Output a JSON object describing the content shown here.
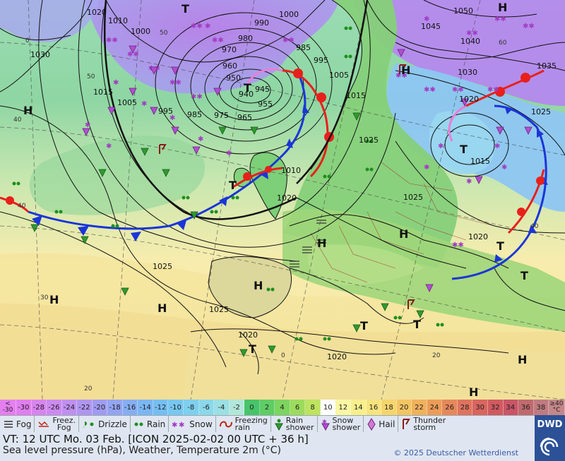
{
  "map": {
    "pressure_labels": [
      "1020",
      "1010",
      "1000",
      "990",
      "1000",
      "980",
      "970",
      "960",
      "950",
      "940",
      "945",
      "955",
      "965",
      "975",
      "985",
      "995",
      "1005",
      "1015",
      "1025",
      "1030",
      "1050",
      "1045",
      "1040",
      "1030",
      "1035",
      "1025",
      "1015",
      "1020",
      "1025",
      "1015",
      "1010",
      "1020",
      "1025",
      "1025",
      "1020",
      "1020",
      "1005",
      "995",
      "985",
      "1020"
    ],
    "highs_lows": [
      "H",
      "T",
      "H",
      "H",
      "T",
      "H",
      "T",
      "H",
      "H",
      "H",
      "T",
      "T",
      "H",
      "T",
      "T",
      "H",
      "T",
      "H",
      "T"
    ],
    "temp_isolines": [
      "40",
      "50",
      "40",
      "30",
      "20",
      "50",
      "60",
      "40",
      "20",
      "0",
      "0"
    ]
  },
  "scale": {
    "end_low_top": "<",
    "end_low_bottom": "-30",
    "values": [
      "-30",
      "-28",
      "-26",
      "-24",
      "-22",
      "-20",
      "-18",
      "-16",
      "-14",
      "-12",
      "-10",
      "-8",
      "-6",
      "-4",
      "-2",
      "0",
      "2",
      "4",
      "6",
      "8",
      "10",
      "12",
      "14",
      "16",
      "18",
      "20",
      "22",
      "24",
      "26",
      "28",
      "30",
      "32",
      "34",
      "36",
      "38"
    ],
    "colors": [
      "#e17ef0",
      "#d884ef",
      "#cc8af0",
      "#bf8ff0",
      "#b095f0",
      "#a09bf1",
      "#93a4f2",
      "#85adf2",
      "#7ab6f3",
      "#74bef3",
      "#77c7f1",
      "#7ed0ee",
      "#8bd8ea",
      "#9be0e4",
      "#b3e6da",
      "#47c469",
      "#5fcc64",
      "#7dd45f",
      "#9cdb5e",
      "#bde35f",
      "#ffffff",
      "#fbf7a3",
      "#f8ef8e",
      "#f8e37e",
      "#f6d56e",
      "#f3c462",
      "#f0b15c",
      "#ec9c57",
      "#e6875a",
      "#df735f",
      "#d9655f",
      "#d05a60",
      "#c95567",
      "#bf6a6e",
      "#c07b80"
    ],
    "end_high_top": "≥40",
    "end_high_bottom": "°C"
  },
  "legend": {
    "fog": "Fog",
    "freez_fog": "Freez.\nFog",
    "drizzle": "Drizzle",
    "rain": "Rain",
    "snow": "Snow",
    "freezing_rain": "Freezing\nrain",
    "rain_shower": "Rain\nshower",
    "snow_shower": "Snow\nshower",
    "hail": "Hail",
    "thunderstorm": "Thunder\nstorm"
  },
  "info": {
    "vt": "VT: 12 UTC Mo.  03 Feb. [ICON 2025-02-02  00 UTC + 36 h]",
    "description": "Sea level pressure (hPa), Weather, Temperature 2m (°C)",
    "copyright": "© 2025 Deutscher Wetterdienst"
  },
  "logo": {
    "text": "DWD"
  },
  "colors": {
    "cold_front": "#1a35d8",
    "warm_front": "#e8201b",
    "occlusion": "#9b3fbf",
    "isobar": "#111111",
    "sea_warm": "#f6e89a",
    "sea_mild": "#b9e3b9",
    "land_green": "#7fd27a",
    "cold_purple": "#c79af2",
    "cold_blue": "#8ec6f2"
  }
}
